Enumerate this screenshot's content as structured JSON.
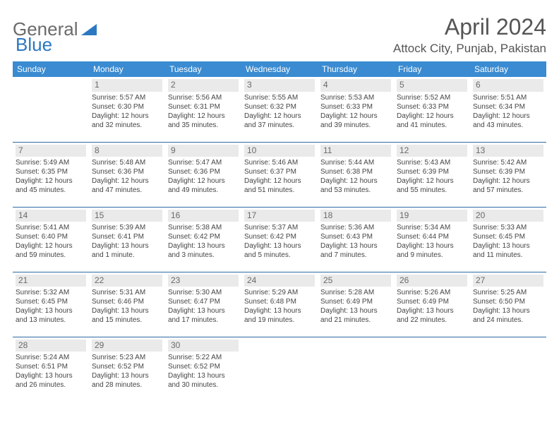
{
  "logo": {
    "word1": "General",
    "word2": "Blue"
  },
  "title": "April 2024",
  "location": "Attock City, Punjab, Pakistan",
  "colors": {
    "header_bg": "#3a8bd1",
    "header_text": "#ffffff",
    "border": "#2d6aa3",
    "daynum_bg": "#eaeaea",
    "text": "#454545",
    "logo_gray": "#6b6b6b",
    "logo_blue": "#2b78c2"
  },
  "weekdays": [
    "Sunday",
    "Monday",
    "Tuesday",
    "Wednesday",
    "Thursday",
    "Friday",
    "Saturday"
  ],
  "weeks": [
    [
      null,
      {
        "n": "1",
        "r": "Sunrise: 5:57 AM",
        "s": "Sunset: 6:30 PM",
        "d1": "Daylight: 12 hours",
        "d2": "and 32 minutes."
      },
      {
        "n": "2",
        "r": "Sunrise: 5:56 AM",
        "s": "Sunset: 6:31 PM",
        "d1": "Daylight: 12 hours",
        "d2": "and 35 minutes."
      },
      {
        "n": "3",
        "r": "Sunrise: 5:55 AM",
        "s": "Sunset: 6:32 PM",
        "d1": "Daylight: 12 hours",
        "d2": "and 37 minutes."
      },
      {
        "n": "4",
        "r": "Sunrise: 5:53 AM",
        "s": "Sunset: 6:33 PM",
        "d1": "Daylight: 12 hours",
        "d2": "and 39 minutes."
      },
      {
        "n": "5",
        "r": "Sunrise: 5:52 AM",
        "s": "Sunset: 6:33 PM",
        "d1": "Daylight: 12 hours",
        "d2": "and 41 minutes."
      },
      {
        "n": "6",
        "r": "Sunrise: 5:51 AM",
        "s": "Sunset: 6:34 PM",
        "d1": "Daylight: 12 hours",
        "d2": "and 43 minutes."
      }
    ],
    [
      {
        "n": "7",
        "r": "Sunrise: 5:49 AM",
        "s": "Sunset: 6:35 PM",
        "d1": "Daylight: 12 hours",
        "d2": "and 45 minutes."
      },
      {
        "n": "8",
        "r": "Sunrise: 5:48 AM",
        "s": "Sunset: 6:36 PM",
        "d1": "Daylight: 12 hours",
        "d2": "and 47 minutes."
      },
      {
        "n": "9",
        "r": "Sunrise: 5:47 AM",
        "s": "Sunset: 6:36 PM",
        "d1": "Daylight: 12 hours",
        "d2": "and 49 minutes."
      },
      {
        "n": "10",
        "r": "Sunrise: 5:46 AM",
        "s": "Sunset: 6:37 PM",
        "d1": "Daylight: 12 hours",
        "d2": "and 51 minutes."
      },
      {
        "n": "11",
        "r": "Sunrise: 5:44 AM",
        "s": "Sunset: 6:38 PM",
        "d1": "Daylight: 12 hours",
        "d2": "and 53 minutes."
      },
      {
        "n": "12",
        "r": "Sunrise: 5:43 AM",
        "s": "Sunset: 6:39 PM",
        "d1": "Daylight: 12 hours",
        "d2": "and 55 minutes."
      },
      {
        "n": "13",
        "r": "Sunrise: 5:42 AM",
        "s": "Sunset: 6:39 PM",
        "d1": "Daylight: 12 hours",
        "d2": "and 57 minutes."
      }
    ],
    [
      {
        "n": "14",
        "r": "Sunrise: 5:41 AM",
        "s": "Sunset: 6:40 PM",
        "d1": "Daylight: 12 hours",
        "d2": "and 59 minutes."
      },
      {
        "n": "15",
        "r": "Sunrise: 5:39 AM",
        "s": "Sunset: 6:41 PM",
        "d1": "Daylight: 13 hours",
        "d2": "and 1 minute."
      },
      {
        "n": "16",
        "r": "Sunrise: 5:38 AM",
        "s": "Sunset: 6:42 PM",
        "d1": "Daylight: 13 hours",
        "d2": "and 3 minutes."
      },
      {
        "n": "17",
        "r": "Sunrise: 5:37 AM",
        "s": "Sunset: 6:42 PM",
        "d1": "Daylight: 13 hours",
        "d2": "and 5 minutes."
      },
      {
        "n": "18",
        "r": "Sunrise: 5:36 AM",
        "s": "Sunset: 6:43 PM",
        "d1": "Daylight: 13 hours",
        "d2": "and 7 minutes."
      },
      {
        "n": "19",
        "r": "Sunrise: 5:34 AM",
        "s": "Sunset: 6:44 PM",
        "d1": "Daylight: 13 hours",
        "d2": "and 9 minutes."
      },
      {
        "n": "20",
        "r": "Sunrise: 5:33 AM",
        "s": "Sunset: 6:45 PM",
        "d1": "Daylight: 13 hours",
        "d2": "and 11 minutes."
      }
    ],
    [
      {
        "n": "21",
        "r": "Sunrise: 5:32 AM",
        "s": "Sunset: 6:45 PM",
        "d1": "Daylight: 13 hours",
        "d2": "and 13 minutes."
      },
      {
        "n": "22",
        "r": "Sunrise: 5:31 AM",
        "s": "Sunset: 6:46 PM",
        "d1": "Daylight: 13 hours",
        "d2": "and 15 minutes."
      },
      {
        "n": "23",
        "r": "Sunrise: 5:30 AM",
        "s": "Sunset: 6:47 PM",
        "d1": "Daylight: 13 hours",
        "d2": "and 17 minutes."
      },
      {
        "n": "24",
        "r": "Sunrise: 5:29 AM",
        "s": "Sunset: 6:48 PM",
        "d1": "Daylight: 13 hours",
        "d2": "and 19 minutes."
      },
      {
        "n": "25",
        "r": "Sunrise: 5:28 AM",
        "s": "Sunset: 6:49 PM",
        "d1": "Daylight: 13 hours",
        "d2": "and 21 minutes."
      },
      {
        "n": "26",
        "r": "Sunrise: 5:26 AM",
        "s": "Sunset: 6:49 PM",
        "d1": "Daylight: 13 hours",
        "d2": "and 22 minutes."
      },
      {
        "n": "27",
        "r": "Sunrise: 5:25 AM",
        "s": "Sunset: 6:50 PM",
        "d1": "Daylight: 13 hours",
        "d2": "and 24 minutes."
      }
    ],
    [
      {
        "n": "28",
        "r": "Sunrise: 5:24 AM",
        "s": "Sunset: 6:51 PM",
        "d1": "Daylight: 13 hours",
        "d2": "and 26 minutes."
      },
      {
        "n": "29",
        "r": "Sunrise: 5:23 AM",
        "s": "Sunset: 6:52 PM",
        "d1": "Daylight: 13 hours",
        "d2": "and 28 minutes."
      },
      {
        "n": "30",
        "r": "Sunrise: 5:22 AM",
        "s": "Sunset: 6:52 PM",
        "d1": "Daylight: 13 hours",
        "d2": "and 30 minutes."
      },
      null,
      null,
      null,
      null
    ]
  ]
}
